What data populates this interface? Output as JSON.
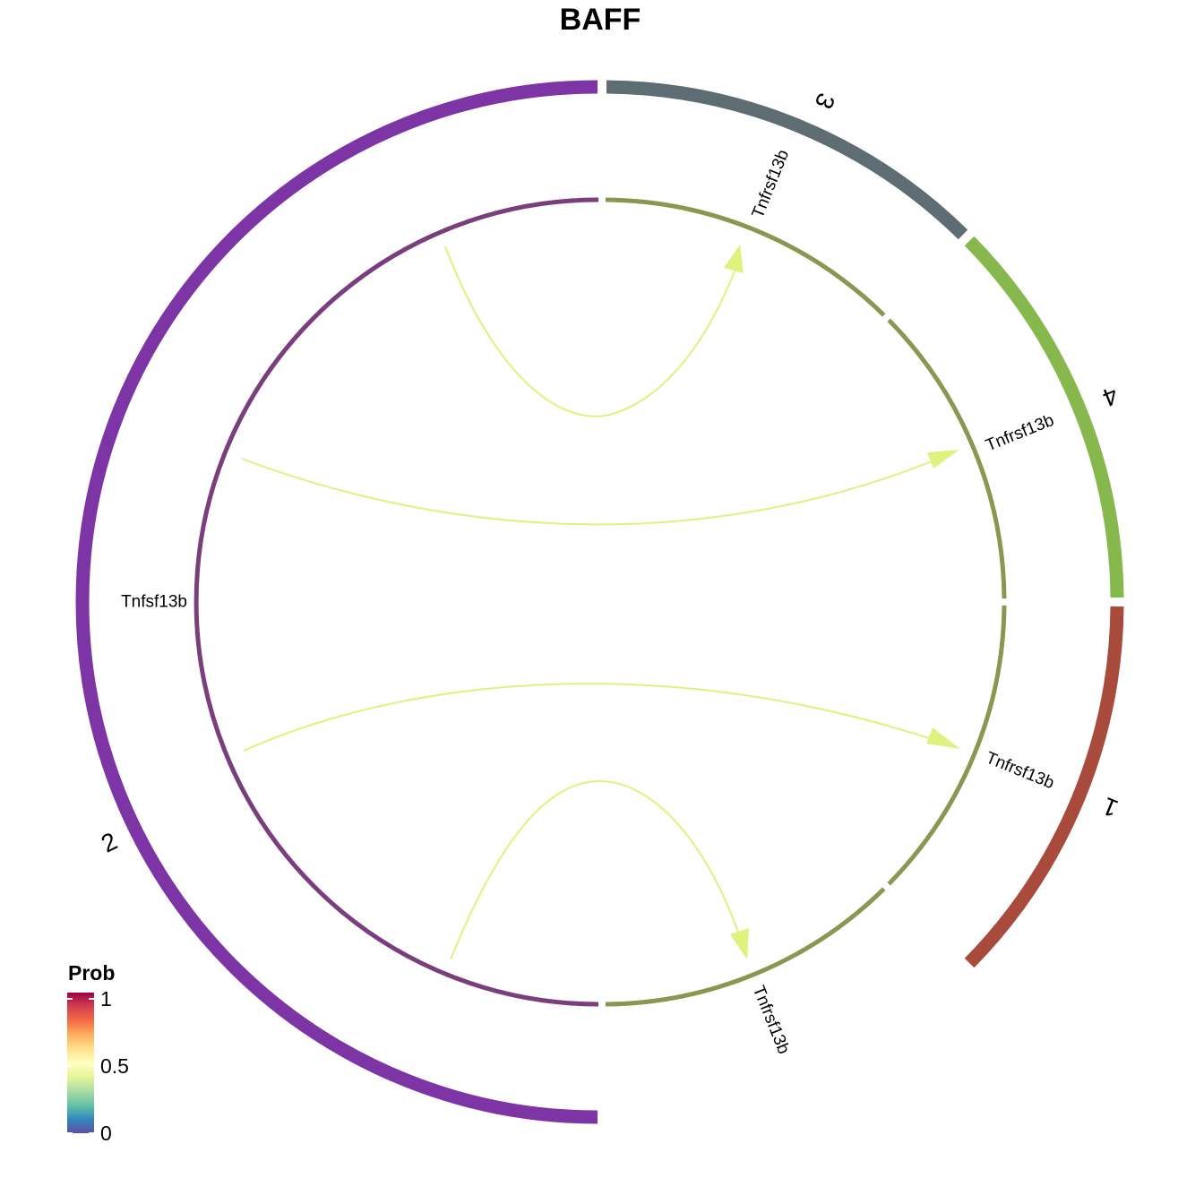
{
  "title": "BAFF",
  "outer_groups": [
    {
      "label": "2",
      "color": "#7D35A6"
    },
    {
      "label": "3",
      "color": "#5E6C74"
    },
    {
      "label": "4",
      "color": "#86B84D"
    },
    {
      "label": "1",
      "color": "#A84A3C"
    }
  ],
  "inner_sectors": [
    {
      "gene": "Tnfsf13b",
      "color": "#7B3E7C",
      "group": "2"
    },
    {
      "gene": "Tnfrsf13b",
      "color": "#8C9650",
      "group": "3"
    },
    {
      "gene": "Tnfrsf13b",
      "color": "#8C9650",
      "group": "4"
    },
    {
      "gene": "Tnfrsf13b",
      "color": "#8C9650",
      "group": "1"
    },
    {
      "gene": "Tnfrsf13b",
      "color": "#8C9650",
      "group": "2"
    }
  ],
  "links": [
    {
      "from": "Tnfsf13b",
      "to_group": "3",
      "prob": 0.55,
      "color": "#DFF27E"
    },
    {
      "from": "Tnfsf13b",
      "to_group": "4",
      "prob": 0.55,
      "color": "#DFF27E"
    },
    {
      "from": "Tnfsf13b",
      "to_group": "1",
      "prob": 0.55,
      "color": "#DFF27E"
    },
    {
      "from": "Tnfsf13b",
      "to_group": "2",
      "prob": 0.55,
      "color": "#DFF27E"
    }
  ],
  "legend": {
    "title": "Prob",
    "ticks": [
      "1",
      "0.5",
      "0"
    ],
    "palette": [
      "#5E4FA2",
      "#3288BD",
      "#66C2A5",
      "#ABDDA4",
      "#E6F598",
      "#FFFFBF",
      "#FEE08B",
      "#FDAE61",
      "#F46D43",
      "#D53E4F",
      "#9E0142"
    ]
  }
}
